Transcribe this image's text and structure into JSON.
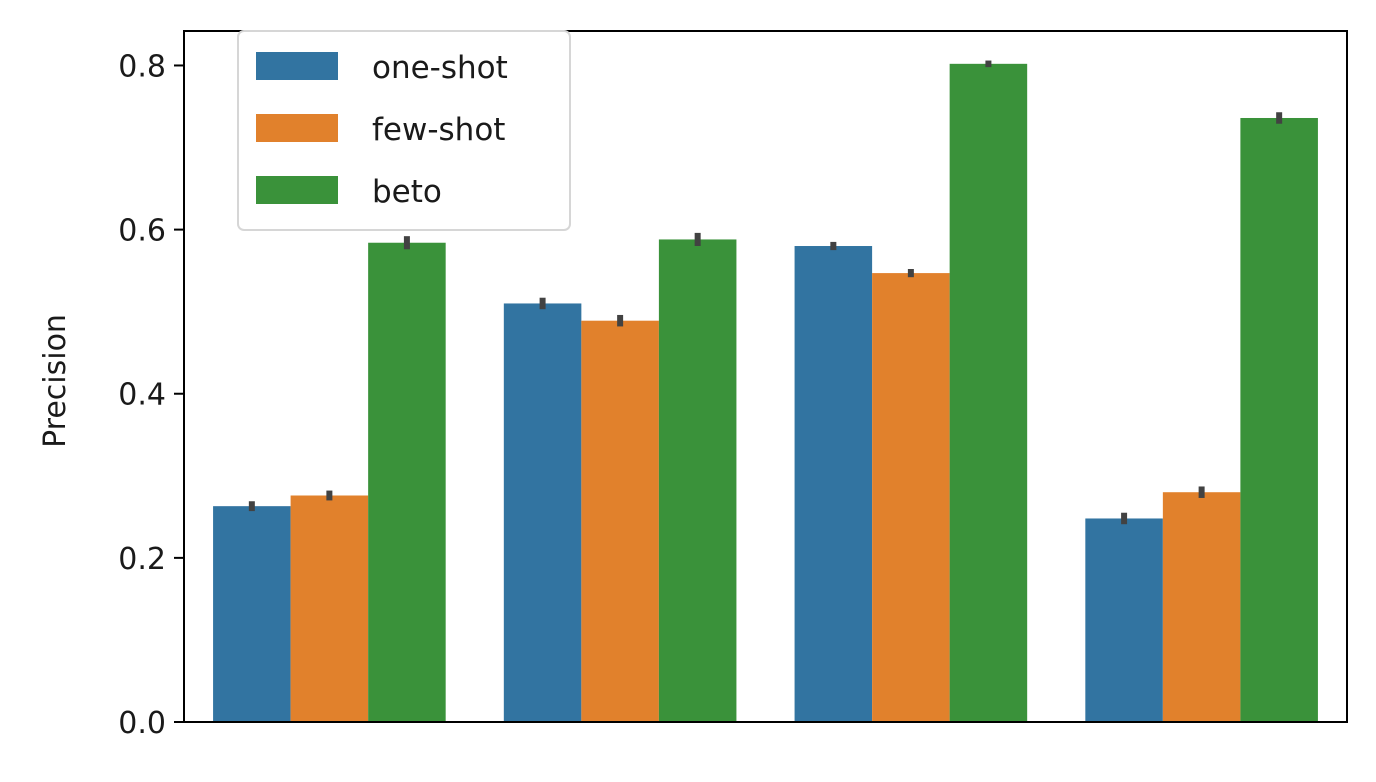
{
  "chart_data": {
    "type": "bar",
    "title": "",
    "xlabel": "",
    "ylabel": "Precision",
    "ylim": [
      0,
      0.842
    ],
    "yticks": [
      "0.0",
      "0.2",
      "0.4",
      "0.6",
      "0.8"
    ],
    "categories": [
      "",
      "",
      "",
      ""
    ],
    "grid": false,
    "legend_position": "upper-left",
    "series": [
      {
        "name": "one-shot",
        "color": "#3274a1",
        "values": [
          0.263,
          0.51,
          0.58,
          0.248
        ],
        "err": [
          0.006,
          0.007,
          0.005,
          0.007
        ]
      },
      {
        "name": "few-shot",
        "color": "#e1812c",
        "values": [
          0.276,
          0.489,
          0.547,
          0.28
        ],
        "err": [
          0.006,
          0.007,
          0.005,
          0.007
        ]
      },
      {
        "name": "beto",
        "color": "#3a923a",
        "values": [
          0.584,
          0.588,
          0.802,
          0.736
        ],
        "err": [
          0.008,
          0.008,
          0.004,
          0.007
        ]
      }
    ]
  }
}
